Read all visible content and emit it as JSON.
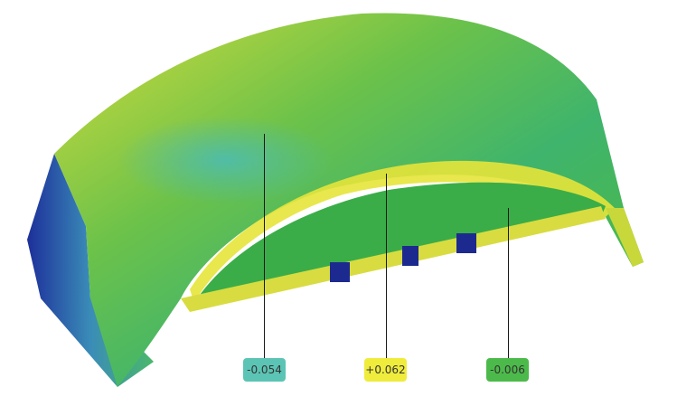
{
  "annotations": [
    {
      "value": "-0.054",
      "color": "#5bc4b4"
    },
    {
      "value": "+0.062",
      "color": "#efec3c"
    },
    {
      "value": "-0.006",
      "color": "#4cba4a"
    }
  ],
  "colormap": {
    "low": "#1a2a9a",
    "mid_low": "#3bb0a8",
    "mid": "#3cae48",
    "high": "#e8e63a",
    "max": "#d04030"
  }
}
